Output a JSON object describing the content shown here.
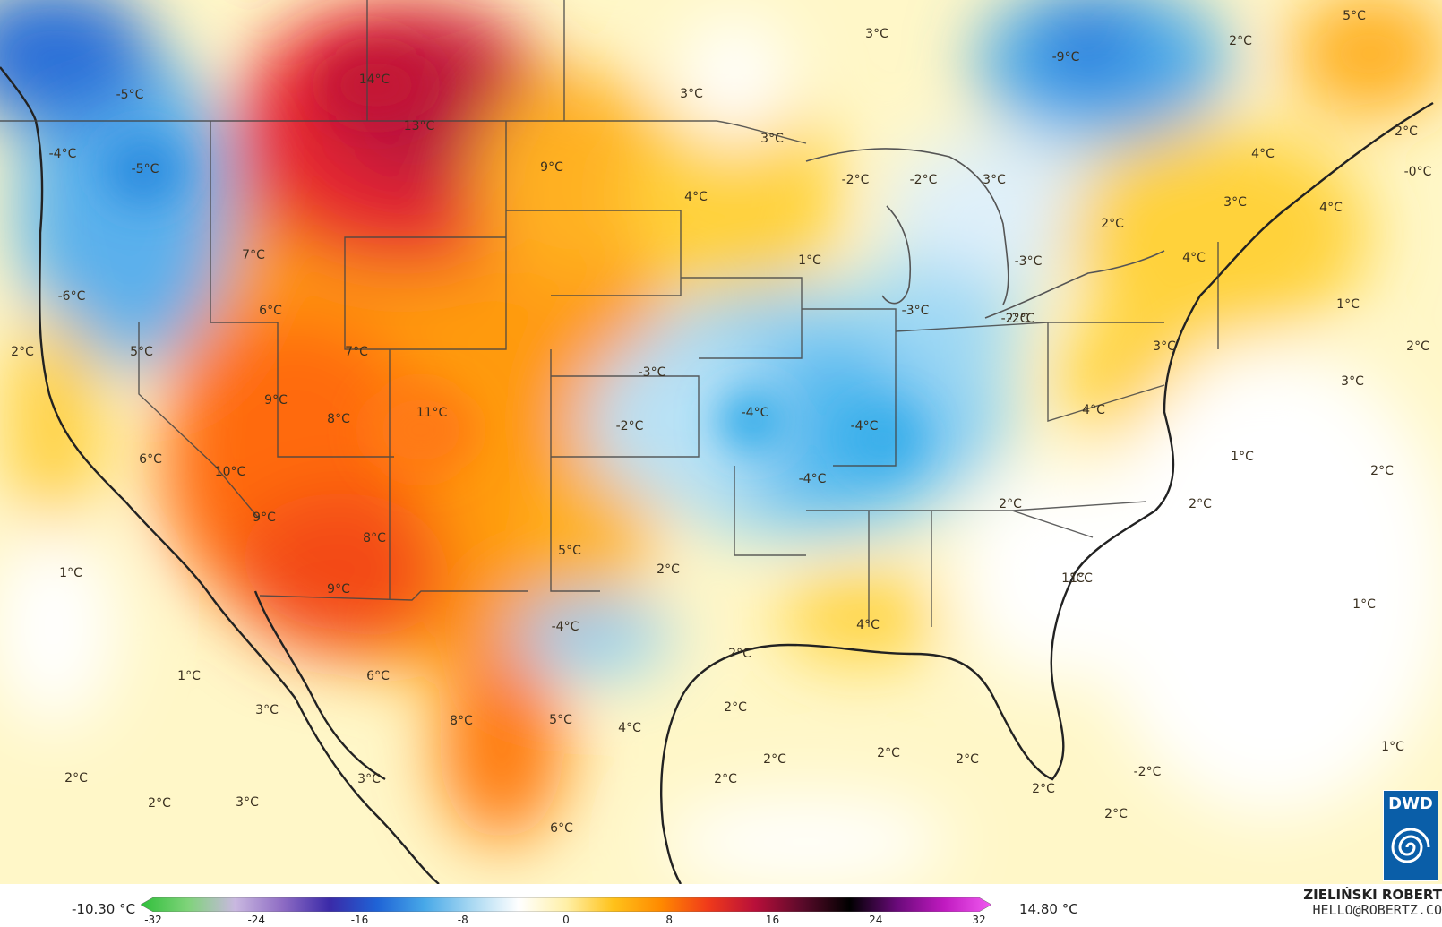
{
  "map": {
    "labels": [
      "14°C",
      "13°C",
      "9°C",
      "7°C",
      "6°C",
      "5°C",
      "-5°C",
      "-4°C",
      "-6°C",
      "2°C",
      "-5°C",
      "7°C",
      "9°C",
      "8°C",
      "11°C",
      "6°C",
      "10°C",
      "9°C",
      "8°C",
      "9°C",
      "-3°C",
      "-2°C",
      "-4°C",
      "-4°C",
      "-4°C",
      "5°C",
      "2°C",
      "-4°C",
      "4°C",
      "4°C",
      "3°C",
      "3°C",
      "3°C",
      "-9°C",
      "5°C",
      "2°C",
      "2°C",
      "4°C",
      "-0°C",
      "3°C",
      "4°C",
      "2°C",
      "-2°C",
      "-2°C",
      "3°C",
      "1°C",
      "-3°C",
      "-3°C",
      "-2°C",
      "4°C",
      "1°C",
      "2°C",
      "3°C",
      "3°C",
      "4°C",
      "1°C",
      "2°C",
      "2°C",
      "2°C",
      "1°C",
      "1°C",
      "1°C",
      "1°C",
      "1°C",
      "3°C",
      "2°C",
      "2°C",
      "3°C",
      "6°C",
      "8°C",
      "5°C",
      "4°C",
      "6°C",
      "2°C",
      "2°C",
      "2°C",
      "2°C",
      "2°C",
      "2°C",
      "2°C",
      "2°C",
      "-2°C",
      "3°C",
      "1°C",
      "-2°C"
    ]
  },
  "legend": {
    "min_label": "-10.30 °C",
    "max_label": "14.80 °C",
    "ticks": [
      "-32",
      "-24",
      "-16",
      "-8",
      "0",
      "8",
      "16",
      "24",
      "32"
    ],
    "colors": [
      "#2fbf3a",
      "#7fd37a",
      "#c9b8e0",
      "#8e6cc4",
      "#3a2aa8",
      "#1f63d6",
      "#47a8e8",
      "#a8d8f2",
      "#ffffff",
      "#fff0a8",
      "#ffc21a",
      "#ff8a00",
      "#f03a1a",
      "#b80f3a",
      "#5a0a2a",
      "#000000",
      "#6a0a7a",
      "#c01ac0",
      "#f05af0"
    ]
  },
  "credit": {
    "author": "ZIELIŃSKI ROBERT",
    "email": "HELLO@ROBERTZ.CO"
  },
  "logo": {
    "text": "DWD"
  }
}
